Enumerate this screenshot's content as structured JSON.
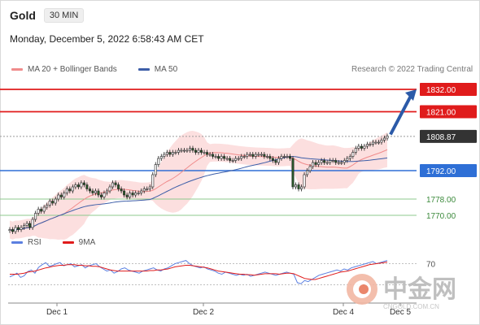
{
  "header": {
    "instrument": "Gold",
    "timeframe": "30 MIN"
  },
  "datetime": "Monday, December 5, 2022 6:58:43 AM CET",
  "legend": {
    "ma20": "MA 20 + Bollinger Bands",
    "ma50": "MA 50",
    "credit": "Research © 2022 Trading Central",
    "rsi": "RSI",
    "rsi_ma": "9MA"
  },
  "colors": {
    "resistance": "#e01b1b",
    "current": "#333333",
    "pivot": "#2e6fd6",
    "support": "#8dc98d",
    "ma20": "#f08b8b",
    "ma50": "#3d5ea8",
    "band_fill": "#fbd9d9",
    "rsi_line": "#5b7fe0",
    "rsi_ma_line": "#e01b1b",
    "arrow": "#2b5aa8"
  },
  "chart_data": {
    "type": "candlestick",
    "x_ticks": [
      "Dec 1",
      "Dec 2",
      "Dec 4",
      "Dec 5"
    ],
    "y_range": [
      1760,
      1840
    ],
    "levels": [
      {
        "value": 1832.0,
        "label": "1832.00",
        "kind": "resistance"
      },
      {
        "value": 1821.0,
        "label": "1821.00",
        "kind": "resistance"
      },
      {
        "value": 1808.87,
        "label": "1808.87",
        "kind": "current"
      },
      {
        "value": 1792.0,
        "label": "1792.00",
        "kind": "pivot"
      },
      {
        "value": 1778.0,
        "label": "1778.00",
        "kind": "support"
      },
      {
        "value": 1770.0,
        "label": "1770.00",
        "kind": "support"
      }
    ],
    "closes": [
      1763,
      1762,
      1764,
      1763,
      1764,
      1765,
      1766,
      1764,
      1768,
      1771,
      1773,
      1772,
      1774,
      1775,
      1777,
      1776,
      1778,
      1780,
      1779,
      1781,
      1783,
      1782,
      1784,
      1785,
      1784,
      1786,
      1785,
      1783,
      1782,
      1781,
      1782,
      1780,
      1779,
      1781,
      1782,
      1784,
      1786,
      1785,
      1783,
      1782,
      1780,
      1779,
      1781,
      1780,
      1781,
      1781,
      1782,
      1783,
      1783,
      1784,
      1790,
      1795,
      1798,
      1799,
      1800,
      1801,
      1800,
      1801,
      1801,
      1802,
      1802,
      1802,
      1802,
      1803,
      1802,
      1801,
      1802,
      1801,
      1801,
      1800,
      1800,
      1799,
      1799,
      1798,
      1799,
      1798,
      1798,
      1797,
      1797,
      1798,
      1798,
      1799,
      1799,
      1800,
      1800,
      1799,
      1800,
      1800,
      1800,
      1799,
      1799,
      1798,
      1797,
      1796,
      1798,
      1799,
      1799,
      1799,
      1798,
      1784,
      1785,
      1783,
      1784,
      1790,
      1792,
      1794,
      1796,
      1795,
      1796,
      1797,
      1796,
      1796,
      1797,
      1797,
      1796,
      1796,
      1796,
      1797,
      1798,
      1799,
      1801,
      1803,
      1804,
      1803,
      1804,
      1805,
      1805,
      1806,
      1806,
      1806,
      1807,
      1808,
      1809
    ],
    "rsi": {
      "range": [
        0,
        100
      ],
      "reference_level": 70,
      "values": [
        45,
        48,
        52,
        44,
        47,
        55,
        58,
        52,
        63,
        68,
        72,
        65,
        67,
        70,
        72,
        66,
        68,
        70,
        64,
        66,
        68,
        62,
        66,
        68,
        70,
        64,
        60,
        56,
        58,
        52,
        55,
        60,
        62,
        58,
        56,
        54,
        52,
        56,
        58,
        60,
        62,
        58,
        56,
        60,
        62,
        66,
        70,
        72,
        74,
        76,
        70,
        66,
        64,
        62,
        64,
        60,
        58,
        56,
        52,
        50,
        54,
        52,
        50,
        48,
        50,
        48,
        50,
        46,
        48,
        50,
        52,
        54,
        52,
        50,
        48,
        50,
        52,
        54,
        52,
        50,
        34,
        32,
        38,
        36,
        40,
        44,
        48,
        50,
        52,
        54,
        56,
        58,
        56,
        60,
        58,
        62,
        64,
        66,
        68,
        70,
        72,
        74,
        70,
        72,
        74,
        76
      ],
      "ma": [
        50,
        50,
        50,
        51,
        52,
        54,
        55,
        56,
        58,
        60,
        62,
        63,
        65,
        66,
        67,
        67,
        68,
        68,
        68,
        67,
        67,
        66,
        66,
        65,
        65,
        64,
        62,
        60,
        58,
        57,
        56,
        56,
        56,
        56,
        56,
        56,
        56,
        56,
        56,
        57,
        57,
        58,
        58,
        59,
        60,
        62,
        64,
        65,
        66,
        67,
        67,
        66,
        65,
        64,
        63,
        62,
        60,
        58,
        56,
        55,
        54,
        53,
        52,
        51,
        50,
        50,
        49,
        49,
        48,
        49,
        50,
        51,
        51,
        51,
        51,
        50,
        51,
        52,
        52,
        51,
        48,
        45,
        42,
        41,
        40,
        40,
        42,
        44,
        46,
        48,
        50,
        52,
        54,
        55,
        56,
        58,
        60,
        62,
        64,
        66,
        68,
        69,
        70,
        71,
        72,
        73
      ]
    }
  }
}
